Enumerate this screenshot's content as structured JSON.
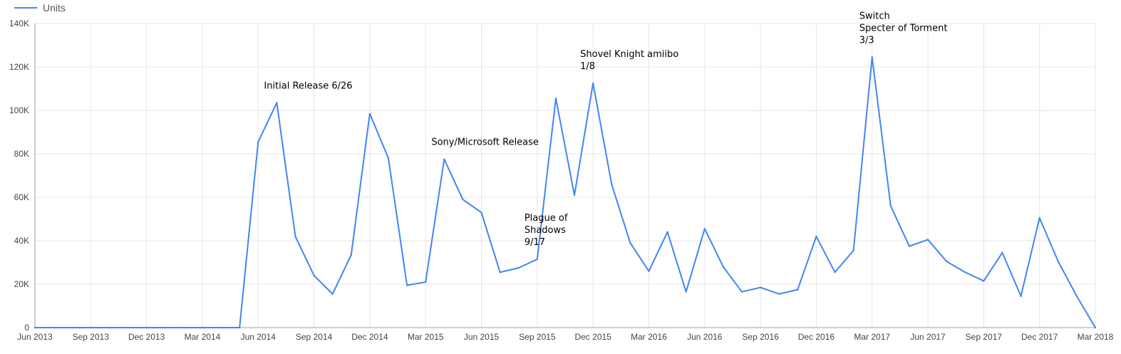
{
  "chart_data": {
    "type": "line",
    "legend": {
      "position": "top-left",
      "entries": [
        "Units"
      ]
    },
    "series": [
      {
        "name": "Units",
        "color": "#4285f4",
        "values": [
          0,
          0,
          0,
          0,
          0,
          0,
          0,
          0,
          0,
          0,
          0,
          0,
          85500,
          103500,
          42000,
          24000,
          15500,
          33500,
          98500,
          78000,
          19500,
          21000,
          77500,
          59000,
          53000,
          25500,
          27500,
          31500,
          105500,
          61000,
          112500,
          66000,
          39000,
          26000,
          44000,
          16500,
          45500,
          28000,
          16500,
          18500,
          15500,
          17500,
          42000,
          25500,
          35500,
          124500,
          56000,
          37500,
          40500,
          30500,
          25500,
          21500,
          34500,
          14500,
          50500,
          30500,
          14500,
          0
        ]
      }
    ],
    "x_start": "Jun 2013",
    "x_end": "Mar 2018",
    "x_step": "month",
    "xticks": [
      "Jun 2013",
      "Sep 2013",
      "Dec 2013",
      "Mar 2014",
      "Jun 2014",
      "Sep 2014",
      "Dec 2014",
      "Mar 2015",
      "Jun 2015",
      "Sep 2015",
      "Dec 2015",
      "Mar 2016",
      "Jun 2016",
      "Sep 2016",
      "Dec 2016",
      "Mar 2017",
      "Jun 2017",
      "Sep 2017",
      "Dec 2017",
      "Mar 2018"
    ],
    "yticks": [
      "0",
      "20K",
      "40K",
      "60K",
      "80K",
      "100K",
      "120K",
      "140K"
    ],
    "ylim": [
      0,
      140000
    ],
    "grid": true,
    "annotations": [
      {
        "lines": [
          "Initial Release 6/26"
        ],
        "anchor": "Jul 2014"
      },
      {
        "lines": [
          "Sony/Microsoft Release"
        ],
        "anchor": "Apr 2015"
      },
      {
        "lines": [
          "Plague of",
          "Shadows",
          "9/17"
        ],
        "anchor": "Sep 2015"
      },
      {
        "lines": [
          "Shovel Knight amiibo",
          "1/8"
        ],
        "anchor": "Dec 2015"
      },
      {
        "lines": [
          "Switch",
          "Specter of Torment",
          "3/3"
        ],
        "anchor": "Mar 2017"
      }
    ]
  }
}
